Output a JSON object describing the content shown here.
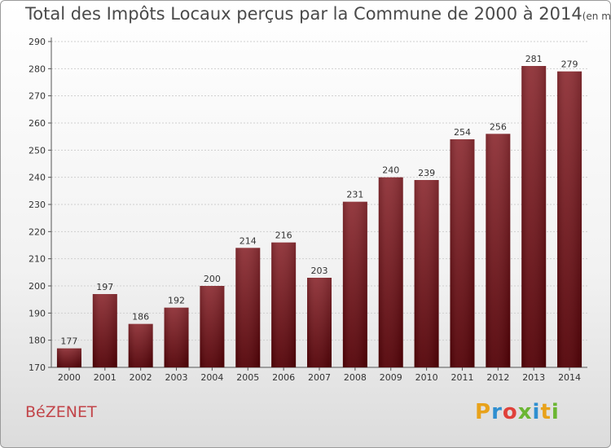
{
  "chart_data": {
    "type": "bar",
    "title": "Total des Impôts Locaux perçus par la Commune de 2000 à 2014",
    "unit": "(en milliers d'€)",
    "categories": [
      "2000",
      "2001",
      "2002",
      "2003",
      "2004",
      "2005",
      "2006",
      "2007",
      "2008",
      "2009",
      "2010",
      "2011",
      "2012",
      "2013",
      "2014"
    ],
    "values": [
      177,
      197,
      186,
      192,
      200,
      214,
      216,
      203,
      231,
      240,
      239,
      254,
      256,
      281,
      279
    ],
    "xlabel": "",
    "ylabel": "",
    "ylim": [
      170,
      290
    ],
    "yticks": [
      170,
      180,
      190,
      200,
      210,
      220,
      230,
      240,
      250,
      260,
      270,
      280,
      290
    ],
    "grid": true,
    "bar_color": "#7a1e22"
  },
  "footer": {
    "commune": "BéZENET",
    "logo_letters": [
      "P",
      "r",
      "o",
      "x",
      "i",
      "t",
      "i"
    ],
    "logo_colors": [
      "#e8a21b",
      "#2f8fd0",
      "#e0413a",
      "#6bb633",
      "#2f8fd0",
      "#e8a21b",
      "#6bb633"
    ]
  }
}
